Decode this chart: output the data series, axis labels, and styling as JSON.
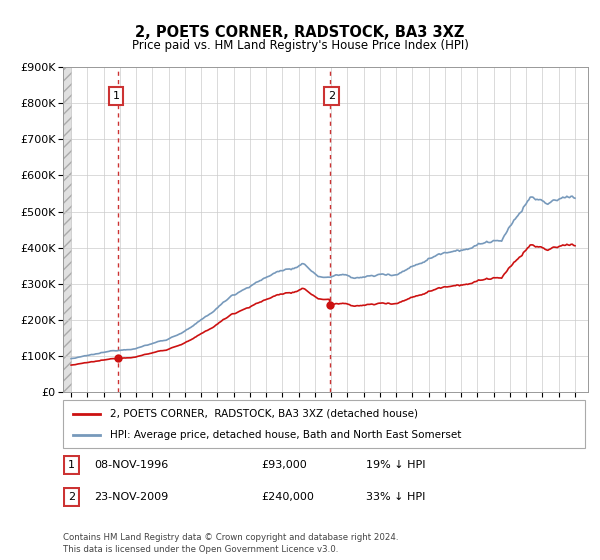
{
  "title": "2, POETS CORNER, RADSTOCK, BA3 3XZ",
  "subtitle": "Price paid vs. HM Land Registry's House Price Index (HPI)",
  "ylim": [
    0,
    900000
  ],
  "yticks": [
    0,
    100000,
    200000,
    300000,
    400000,
    500000,
    600000,
    700000,
    800000,
    900000
  ],
  "ytick_labels": [
    "£0",
    "£100K",
    "£200K",
    "£300K",
    "£400K",
    "£500K",
    "£600K",
    "£700K",
    "£800K",
    "£900K"
  ],
  "hpi_color": "#7799bb",
  "price_color": "#cc1111",
  "marker_color": "#cc1111",
  "sale1_x": 1996.86,
  "sale1_y": 93000,
  "sale2_x": 2009.9,
  "sale2_y": 240000,
  "legend_label_red": "2, POETS CORNER,  RADSTOCK, BA3 3XZ (detached house)",
  "legend_label_blue": "HPI: Average price, detached house, Bath and North East Somerset",
  "footnote": "Contains HM Land Registry data © Crown copyright and database right 2024.\nThis data is licensed under the Open Government Licence v3.0.",
  "grid_color": "#cccccc",
  "xmin": 1993.5,
  "xmax": 2025.8
}
